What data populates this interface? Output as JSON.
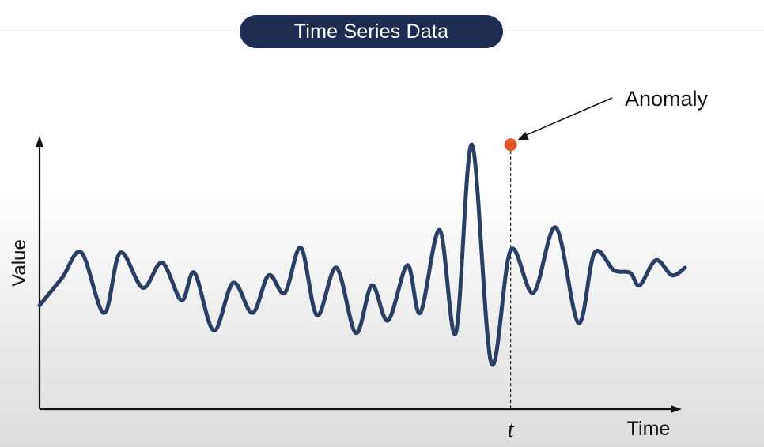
{
  "header": {
    "title": "Time Series Data"
  },
  "colors": {
    "series": "#2b3e63",
    "anomaly": "#e0572d",
    "axis": "#111111",
    "pill": "#1f2d52"
  },
  "chart_data": {
    "type": "line",
    "title": "Time Series Data",
    "xlabel": "Time",
    "ylabel": "Value",
    "xlim": [
      0,
      100
    ],
    "ylim": [
      0,
      100
    ],
    "grid": false,
    "x": [
      0,
      3.5,
      6.5,
      10,
      12.5,
      16,
      19,
      22,
      24,
      27,
      30,
      33,
      35.5,
      38,
      40.5,
      43,
      46,
      49,
      51.5,
      54,
      57,
      59,
      62,
      64.5,
      67,
      70,
      73,
      76.5,
      80,
      83.5,
      86,
      89,
      91.5,
      93,
      95.5,
      98,
      100
    ],
    "values": [
      35,
      46,
      56,
      32,
      56,
      42,
      52,
      37,
      48,
      25,
      44,
      32,
      47,
      40,
      58,
      31,
      50,
      24,
      43,
      29,
      51,
      32,
      65,
      24,
      99,
      12,
      57,
      40,
      66,
      28,
      56,
      49,
      48,
      43,
      53,
      47,
      50
    ],
    "annotations": [
      {
        "text": "Anomaly",
        "x": 73,
        "y": 99
      },
      {
        "text": "t",
        "x": 73
      }
    ]
  }
}
